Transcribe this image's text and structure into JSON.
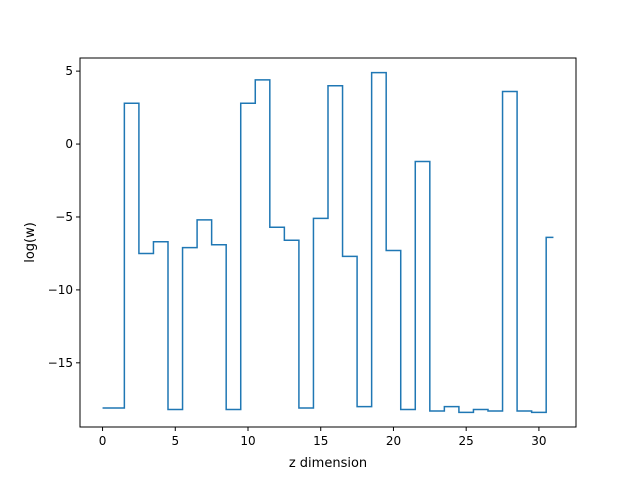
{
  "chart_data": {
    "type": "line",
    "drawstyle": "steps-mid",
    "title": "",
    "xlabel": "z dimension",
    "ylabel": "log(w)",
    "xlim": [
      -1.55,
      32.55
    ],
    "ylim": [
      -19.4,
      5.9
    ],
    "xticks": [
      0,
      5,
      10,
      15,
      20,
      25,
      30
    ],
    "xtick_labels": [
      "0",
      "5",
      "10",
      "15",
      "20",
      "25",
      "30"
    ],
    "yticks": [
      5,
      0,
      -5,
      -10,
      -15
    ],
    "ytick_labels": [
      "5",
      "0",
      "−5",
      "−10",
      "−15"
    ],
    "grid": false,
    "legend": "none",
    "line_color": "#1f77b4",
    "series": [
      {
        "x": [
          0,
          1,
          2,
          3,
          4,
          5,
          6,
          7,
          8,
          9,
          10,
          11,
          12,
          13,
          14,
          15,
          16,
          17,
          18,
          19,
          20,
          21,
          22,
          23,
          24,
          25,
          26,
          27,
          28,
          29,
          30,
          31
        ],
        "values": [
          -18.1,
          -18.1,
          2.8,
          -7.5,
          -6.7,
          -18.2,
          -7.1,
          -5.2,
          -6.9,
          -18.2,
          2.8,
          4.4,
          -5.7,
          -6.6,
          -18.1,
          -5.1,
          4.0,
          -7.7,
          -18.0,
          4.9,
          -7.3,
          -18.2,
          -1.2,
          -18.3,
          -18.0,
          -18.4,
          -18.2,
          -18.3,
          3.6,
          -18.3,
          -18.4,
          -6.4
        ]
      }
    ]
  }
}
